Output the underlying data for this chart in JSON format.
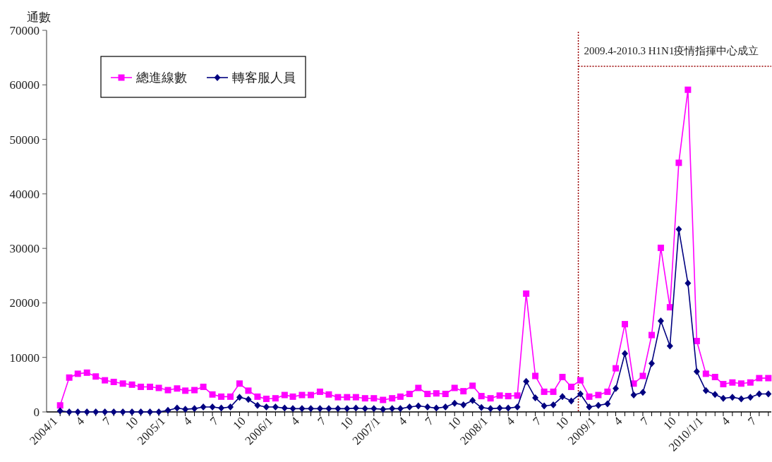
{
  "chart_data": {
    "type": "line",
    "ylabel": "通數",
    "x": [
      "2004-01",
      "2004-02",
      "2004-03",
      "2004-04",
      "2004-05",
      "2004-06",
      "2004-07",
      "2004-08",
      "2004-09",
      "2004-10",
      "2004-11",
      "2004-12",
      "2005-01",
      "2005-02",
      "2005-03",
      "2005-04",
      "2005-05",
      "2005-06",
      "2005-07",
      "2005-08",
      "2005-09",
      "2005-10",
      "2005-11",
      "2005-12",
      "2006-01",
      "2006-02",
      "2006-03",
      "2006-04",
      "2006-05",
      "2006-06",
      "2006-07",
      "2006-08",
      "2006-09",
      "2006-10",
      "2006-11",
      "2006-12",
      "2007-01",
      "2007-02",
      "2007-03",
      "2007-04",
      "2007-05",
      "2007-06",
      "2007-07",
      "2007-08",
      "2007-09",
      "2007-10",
      "2007-11",
      "2007-12",
      "2008-01",
      "2008-02",
      "2008-03",
      "2008-04",
      "2008-05",
      "2008-06",
      "2008-07",
      "2008-08",
      "2008-09",
      "2008-10",
      "2008-11",
      "2008-12",
      "2009-01",
      "2009-02",
      "2009-03",
      "2009-04",
      "2009-05",
      "2009-06",
      "2009-07",
      "2009-08",
      "2009-09",
      "2009-10",
      "2009-11",
      "2009-12",
      "2010-01",
      "2010-02",
      "2010-03",
      "2010-04",
      "2010-05",
      "2010-06",
      "2010-07",
      "2010-08"
    ],
    "series": [
      {
        "name": "總進線數",
        "color": "#ff00ff",
        "marker": "square",
        "values": [
          1200,
          6300,
          7000,
          7200,
          6500,
          5800,
          5500,
          5200,
          5000,
          4600,
          4600,
          4400,
          4000,
          4300,
          3900,
          4000,
          4600,
          3200,
          2800,
          2800,
          5200,
          3900,
          2800,
          2400,
          2500,
          3100,
          2800,
          3100,
          3100,
          3700,
          3200,
          2700,
          2700,
          2700,
          2500,
          2500,
          2200,
          2500,
          2800,
          3300,
          4400,
          3300,
          3400,
          3300,
          4400,
          3800,
          4800,
          2900,
          2500,
          3000,
          2900,
          3000,
          21700,
          6600,
          3700,
          3700,
          6400,
          4600,
          5800,
          2800,
          3100,
          3700,
          8000,
          16100,
          5200,
          6600,
          14100,
          30100,
          19200,
          45700,
          59100,
          13000,
          7000,
          6400,
          5100,
          5400,
          5200,
          5400,
          6200,
          6200
        ]
      },
      {
        "name": "轉客服人員",
        "color": "#000080",
        "marker": "diamond",
        "values": [
          200,
          0,
          0,
          0,
          0,
          0,
          0,
          0,
          0,
          0,
          0,
          0,
          300,
          700,
          500,
          600,
          900,
          900,
          700,
          900,
          2700,
          2300,
          1200,
          900,
          900,
          700,
          600,
          600,
          600,
          600,
          600,
          600,
          600,
          700,
          600,
          600,
          500,
          600,
          600,
          900,
          1100,
          900,
          700,
          900,
          1600,
          1300,
          2100,
          800,
          600,
          700,
          700,
          900,
          5600,
          2600,
          1100,
          1300,
          2800,
          2000,
          3300,
          900,
          1200,
          1500,
          4300,
          10700,
          3100,
          3600,
          8900,
          16700,
          12100,
          33500,
          23600,
          7400,
          3900,
          3200,
          2500,
          2700,
          2400,
          2700,
          3300,
          3300
        ]
      }
    ],
    "xlim": [
      "2003-11-16",
      "2010-08-11"
    ],
    "xticks": [
      {
        "value": "2004-01",
        "label": "2004/1"
      },
      {
        "value": "2004-04",
        "label": "4"
      },
      {
        "value": "2004-07",
        "label": "7"
      },
      {
        "value": "2004-10",
        "label": "10"
      },
      {
        "value": "2005-01",
        "label": "2005/1"
      },
      {
        "value": "2005-04",
        "label": "4"
      },
      {
        "value": "2005-07",
        "label": "7"
      },
      {
        "value": "2005-10",
        "label": "10"
      },
      {
        "value": "2006-01",
        "label": "2006/1"
      },
      {
        "value": "2006-04",
        "label": "4"
      },
      {
        "value": "2006-07",
        "label": "7"
      },
      {
        "value": "2006-10",
        "label": "10"
      },
      {
        "value": "2007-01",
        "label": "2007/1"
      },
      {
        "value": "2007-04",
        "label": "4"
      },
      {
        "value": "2007-07",
        "label": "7"
      },
      {
        "value": "2007-10",
        "label": "10"
      },
      {
        "value": "2008-01",
        "label": "2008/1"
      },
      {
        "value": "2008-04",
        "label": "4"
      },
      {
        "value": "2008-07",
        "label": "7"
      },
      {
        "value": "2008-10",
        "label": "10"
      },
      {
        "value": "2009-01",
        "label": "2009/1"
      },
      {
        "value": "2009-04",
        "label": "4"
      },
      {
        "value": "2009-07",
        "label": "7"
      },
      {
        "value": "2009-10",
        "label": "10"
      },
      {
        "value": "2010-01",
        "label": "2010/1/1"
      },
      {
        "value": "2010-04",
        "label": "4"
      },
      {
        "value": "2010-07",
        "label": "7"
      }
    ],
    "ylim": [
      0,
      70000
    ],
    "yticks": [
      0,
      10000,
      20000,
      30000,
      40000,
      50000,
      60000,
      70000
    ],
    "ref_lines": [
      {
        "axis": "x",
        "value": "2008-10-25",
        "color": "#990000",
        "line_style": "dotted"
      }
    ],
    "annotations": [
      "2009.4-2010.3 H1N1疫情指揮中心成立"
    ],
    "legend": "top left",
    "grid": false,
    "line_style": "solid"
  }
}
